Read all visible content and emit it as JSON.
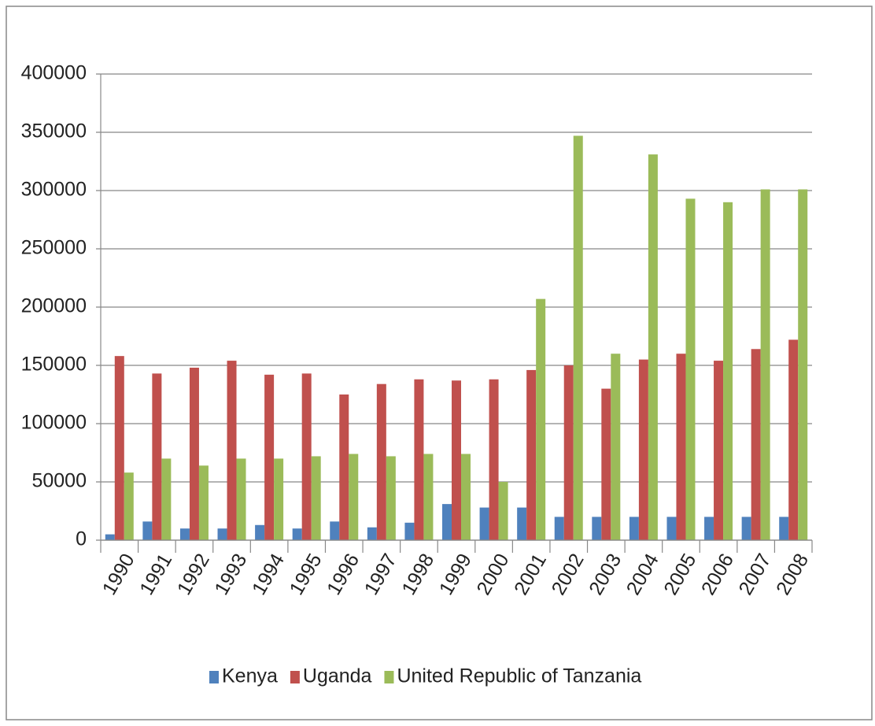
{
  "chart_data": {
    "type": "bar",
    "categories": [
      "1990",
      "1991",
      "1992",
      "1993",
      "1994",
      "1995",
      "1996",
      "1997",
      "1998",
      "1999",
      "2000",
      "2001",
      "2002",
      "2003",
      "2004",
      "2005",
      "2006",
      "2007",
      "2008"
    ],
    "series": [
      {
        "name": "Kenya",
        "color": "#4f81bd",
        "values": [
          5000,
          16000,
          10000,
          10000,
          13000,
          10000,
          16000,
          11000,
          15000,
          31000,
          28000,
          28000,
          20000,
          20000,
          20000,
          20000,
          20000,
          20000,
          20000
        ]
      },
      {
        "name": "Uganda",
        "color": "#c0504d",
        "values": [
          158000,
          143000,
          148000,
          154000,
          142000,
          143000,
          125000,
          134000,
          138000,
          137000,
          138000,
          146000,
          150000,
          130000,
          155000,
          160000,
          154000,
          164000,
          172000
        ]
      },
      {
        "name": "United Republic of Tanzania",
        "color": "#9bbb59",
        "values": [
          58000,
          70000,
          64000,
          70000,
          70000,
          72000,
          74000,
          72000,
          74000,
          74000,
          50000,
          207000,
          347000,
          160000,
          331000,
          293000,
          290000,
          301000,
          301000
        ]
      }
    ],
    "ylim": [
      0,
      400000
    ],
    "yticks": [
      0,
      50000,
      100000,
      150000,
      200000,
      250000,
      300000,
      350000,
      400000
    ],
    "grid": true,
    "legend": "bottom"
  }
}
